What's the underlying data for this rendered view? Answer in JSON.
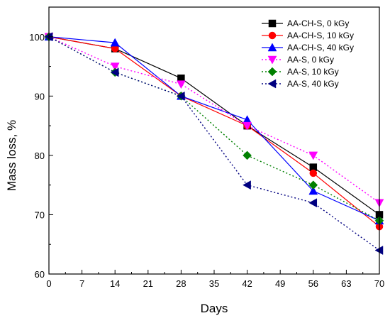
{
  "chart_data": {
    "type": "line",
    "title": "",
    "xlabel": "Days",
    "ylabel": "Mass loss, %",
    "xlim": [
      0,
      70
    ],
    "ylim": [
      60,
      105
    ],
    "xticks": [
      0,
      7,
      14,
      21,
      28,
      35,
      42,
      49,
      56,
      63,
      70
    ],
    "yticks": [
      60,
      70,
      80,
      90,
      100
    ],
    "grid": false,
    "legend_position": "top-right",
    "x": [
      0,
      14,
      28,
      42,
      56,
      70
    ],
    "series": [
      {
        "name": "AA-CH-S, 0  kGy",
        "values": [
          100,
          98,
          93,
          85,
          78,
          70
        ],
        "color": "#000000",
        "line_style": "solid",
        "marker": "square"
      },
      {
        "name": "AA-CH-S, 10  kGy",
        "values": [
          100,
          98,
          90,
          85,
          77,
          68
        ],
        "color": "#ff0000",
        "line_style": "solid",
        "marker": "circle"
      },
      {
        "name": "AA-CH-S, 40  kGy",
        "values": [
          100,
          99,
          90,
          86,
          74,
          69
        ],
        "color": "#0000ff",
        "line_style": "solid",
        "marker": "triangle-up"
      },
      {
        "name": "AA-S, 0  kGy",
        "values": [
          100,
          95,
          92,
          85,
          80,
          72
        ],
        "color": "#ff00ff",
        "line_style": "dotted",
        "marker": "triangle-down"
      },
      {
        "name": "AA-S, 10  kGy",
        "values": [
          100,
          94,
          90,
          80,
          75,
          69
        ],
        "color": "#008000",
        "line_style": "dotted",
        "marker": "diamond"
      },
      {
        "name": "AA-S, 40  kGy",
        "values": [
          100,
          94,
          90,
          75,
          72,
          64
        ],
        "color": "#000080",
        "line_style": "dotted",
        "marker": "triangle-left"
      }
    ]
  }
}
